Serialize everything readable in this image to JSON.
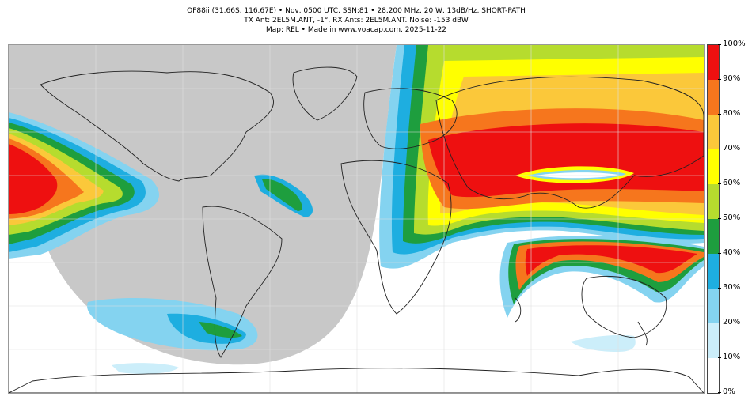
{
  "header": {
    "line1": "OF88ii (31.66S, 116.67E) • Nov, 0500 UTC, SSN:81 • 28.200 MHz, 20 W, 13dB/Hz, SHORT-PATH",
    "line2": "TX Ant: 2EL5M.ANT, -1°, RX Ants: 2EL5M.ANT. Noise: -153 dBW",
    "line3": "Map: REL • Made in www.voacap.com, 2025-11-22"
  },
  "colorbar": {
    "ticks": [
      "100%",
      "90%",
      "80%",
      "70%",
      "60%",
      "50%",
      "40%",
      "30%",
      "20%",
      "10%",
      "0%"
    ],
    "bands": [
      {
        "range": "0-10%",
        "color": "#ffffff"
      },
      {
        "range": "10-20%",
        "color": "#cceefa"
      },
      {
        "range": "20-30%",
        "color": "#84d3f0"
      },
      {
        "range": "30-40%",
        "color": "#1eaee0"
      },
      {
        "range": "40-50%",
        "color": "#1e9e3e"
      },
      {
        "range": "50-60%",
        "color": "#b6dc2e"
      },
      {
        "range": "60-70%",
        "color": "#ffff00"
      },
      {
        "range": "70-80%",
        "color": "#fbc83a"
      },
      {
        "range": "80-90%",
        "color": "#f6761d"
      },
      {
        "range": "90-100%",
        "color": "#ee1010"
      }
    ]
  },
  "map": {
    "night_shade_color": "#c8c8c8",
    "grid": true,
    "projection": "equirectangular"
  }
}
